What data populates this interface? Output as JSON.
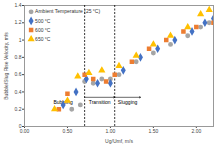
{
  "chart_data": {
    "type": "scatter",
    "x_label": "Ug/Umf, m/s",
    "y_label": "Bubble/Slug Rise Velocity, m/s",
    "xlim": [
      0,
      2.2
    ],
    "xticks": [
      {
        "value": 0,
        "label": "0.00"
      },
      {
        "value": 0.5,
        "label": "0.50"
      },
      {
        "value": 1,
        "label": "1.00"
      },
      {
        "value": 1.5,
        "label": "1.50"
      },
      {
        "value": 2,
        "label": "2.00"
      }
    ],
    "ylim": [
      0,
      1.4
    ],
    "yticks": [
      0,
      0.2,
      0.4,
      0.6,
      0.8,
      1,
      1.2,
      1.4
    ],
    "grid": false,
    "legend": "top-left",
    "vlines": [
      0.7,
      1.05
    ],
    "annotations": [
      {
        "text": "Bubbling",
        "x": 0.45,
        "y": 0.28
      },
      {
        "text": "Transition",
        "x1": 0.7,
        "x2": 1.05,
        "y": 0.28
      },
      {
        "text": "Slugging",
        "x1": 1.05,
        "x2": 1.35,
        "y": 0.28
      }
    ],
    "series": [
      {
        "name": "Ambient Temperature (25 °C)",
        "color": "#a5a5a5",
        "marker": "circle",
        "x": [
          0.55,
          0.65,
          0.7,
          0.8,
          0.9,
          1.0,
          1.1,
          1.3,
          1.5,
          1.7,
          1.9,
          2.05,
          2.15
        ],
        "values": [
          0.2,
          0.25,
          0.52,
          0.5,
          0.55,
          0.55,
          0.6,
          0.75,
          0.85,
          0.95,
          1.05,
          1.15,
          1.2
        ]
      },
      {
        "name": "500 °C",
        "color": "#4472c4",
        "marker": "diamond",
        "x": [
          0.45,
          0.6,
          0.72,
          0.85,
          1.0,
          1.15,
          1.35,
          1.55,
          1.75,
          1.95,
          2.1,
          2.2
        ],
        "values": [
          0.25,
          0.4,
          0.55,
          0.5,
          0.5,
          0.65,
          0.8,
          0.9,
          1.0,
          1.1,
          1.2,
          1.25
        ]
      },
      {
        "name": "600 °C",
        "color": "#ed7d31",
        "marker": "square",
        "x": [
          0.4,
          0.5,
          0.7,
          0.8,
          0.95,
          1.05,
          1.25,
          1.45,
          1.65,
          1.85,
          2.0,
          2.2
        ],
        "values": [
          0.2,
          0.38,
          0.6,
          0.55,
          0.52,
          0.6,
          0.75,
          0.9,
          1.0,
          1.1,
          1.15,
          1.2
        ]
      },
      {
        "name": "650 °C",
        "color": "#ffc000",
        "marker": "triangle",
        "x": [
          0.35,
          0.5,
          0.62,
          0.75,
          0.9,
          1.1,
          1.3,
          1.5,
          1.7,
          1.9,
          2.05,
          2.15
        ],
        "values": [
          0.2,
          0.3,
          0.58,
          0.62,
          0.65,
          0.7,
          0.82,
          0.95,
          1.05,
          1.15,
          1.3,
          1.35
        ]
      }
    ]
  }
}
